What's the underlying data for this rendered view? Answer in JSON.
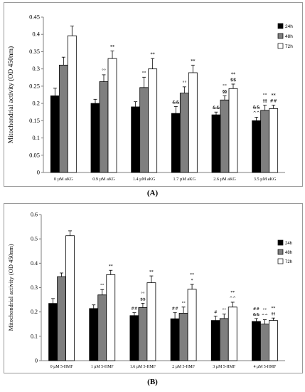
{
  "captions": {
    "a": "(A)",
    "b": "(B)"
  },
  "colors": {
    "series_24h": "#000000",
    "series_48h": "#7f7f7f",
    "series_72h": "#ffffff",
    "stroke": "#000000",
    "axis": "#7f7f7f"
  },
  "chart_data": [
    {
      "type": "bar",
      "ylabel": "Mitochondrial activity (OD 450nm)",
      "ylim": [
        0,
        0.45
      ],
      "yticks": [
        "0",
        "0.05",
        "0.1",
        "0.15",
        "0.2",
        "0.25",
        "0.3",
        "0.35",
        "0.4",
        "0.45"
      ],
      "grid": false,
      "legend_position": "right",
      "categories": [
        "0 µM aKG",
        "0.9 µM aKG",
        "1.4 µM aKG",
        "1.7 µM aKG",
        "2.6 µM aKG",
        "3.5 µM aKG"
      ],
      "series": [
        {
          "name": "24h",
          "values": [
            0.222,
            0.2,
            0.19,
            0.171,
            0.167,
            0.15
          ],
          "errors": [
            0.022,
            0.012,
            0.015,
            0.02,
            0.008,
            0.01
          ]
        },
        {
          "name": "48h",
          "values": [
            0.311,
            0.263,
            0.246,
            0.23,
            0.21,
            0.18
          ],
          "errors": [
            0.023,
            0.02,
            0.03,
            0.018,
            0.012,
            0.015
          ]
        },
        {
          "name": "72h",
          "values": [
            0.396,
            0.33,
            0.3,
            0.289,
            0.243,
            0.185
          ],
          "errors": [
            0.028,
            0.022,
            0.03,
            0.022,
            0.013,
            0.01
          ]
        }
      ],
      "annotations": [
        {
          "category": 1,
          "series": 1,
          "lines": [
            "°°"
          ]
        },
        {
          "category": 1,
          "series": 2,
          "lines": [
            "**"
          ]
        },
        {
          "category": 2,
          "series": 1,
          "lines": [
            "°°"
          ]
        },
        {
          "category": 2,
          "series": 2,
          "lines": [
            "**"
          ]
        },
        {
          "category": 3,
          "series": 0,
          "lines": [
            "&&"
          ]
        },
        {
          "category": 3,
          "series": 1,
          "lines": [
            "°°"
          ]
        },
        {
          "category": 3,
          "series": 2,
          "lines": [
            "**"
          ]
        },
        {
          "category": 4,
          "series": 0,
          "lines": [
            "&&"
          ]
        },
        {
          "category": 4,
          "series": 1,
          "lines": [
            "°°",
            "§§"
          ]
        },
        {
          "category": 4,
          "series": 2,
          "lines": [
            "**",
            "$$"
          ]
        },
        {
          "category": 5,
          "series": 0,
          "lines": [
            "&&",
            "^^"
          ]
        },
        {
          "category": 5,
          "series": 1,
          "lines": [
            "°°",
            "††"
          ]
        },
        {
          "category": 5,
          "series": 2,
          "lines": [
            "**",
            "##"
          ]
        }
      ]
    },
    {
      "type": "bar",
      "ylabel": "Mitochondrial activity (OD 450nm)",
      "ylim": [
        0,
        0.6
      ],
      "yticks": [
        "0",
        "0.1",
        "0.2",
        "0.3",
        "0.4",
        "0.5",
        "0.6"
      ],
      "grid": false,
      "legend_position": "right",
      "categories": [
        "0 µM 5-HMF",
        "1 µM 5-HMF",
        "1.6 µM 5-HMF",
        "2 µM 5-HMF",
        "3 µM 5-HMF",
        "4 µM 5-HMF"
      ],
      "series": [
        {
          "name": "24h",
          "values": [
            0.235,
            0.214,
            0.185,
            0.172,
            0.165,
            0.161
          ],
          "errors": [
            0.02,
            0.015,
            0.012,
            0.025,
            0.018,
            0.012
          ]
        },
        {
          "name": "48h",
          "values": [
            0.345,
            0.27,
            0.218,
            0.195,
            0.173,
            0.15
          ],
          "errors": [
            0.015,
            0.022,
            0.018,
            0.025,
            0.018,
            0.018
          ]
        },
        {
          "name": "72h",
          "values": [
            0.513,
            0.353,
            0.32,
            0.293,
            0.22,
            0.165
          ],
          "errors": [
            0.02,
            0.018,
            0.028,
            0.02,
            0.02,
            0.01
          ]
        }
      ],
      "annotations": [
        {
          "category": 1,
          "series": 1,
          "lines": [
            "°°"
          ]
        },
        {
          "category": 1,
          "series": 2,
          "lines": [
            "**"
          ]
        },
        {
          "category": 2,
          "series": 0,
          "lines": [
            "##"
          ]
        },
        {
          "category": 2,
          "series": 1,
          "lines": [
            "°°",
            "$$"
          ]
        },
        {
          "category": 2,
          "series": 2,
          "lines": [
            "**"
          ]
        },
        {
          "category": 3,
          "series": 0,
          "lines": [
            "##"
          ]
        },
        {
          "category": 3,
          "series": 1,
          "lines": [
            "°°"
          ]
        },
        {
          "category": 3,
          "series": 2,
          "lines": [
            "**",
            "*"
          ]
        },
        {
          "category": 4,
          "series": 0,
          "lines": [
            "#"
          ]
        },
        {
          "category": 4,
          "series": 1,
          "lines": [
            "°°"
          ]
        },
        {
          "category": 4,
          "series": 2,
          "lines": [
            "**",
            "^^"
          ]
        },
        {
          "category": 5,
          "series": 0,
          "lines": [
            "##",
            "&&"
          ]
        },
        {
          "category": 5,
          "series": 1,
          "lines": [
            "°°",
            "^^"
          ]
        },
        {
          "category": 5,
          "series": 2,
          "lines": [
            "**",
            "††"
          ]
        }
      ]
    }
  ]
}
